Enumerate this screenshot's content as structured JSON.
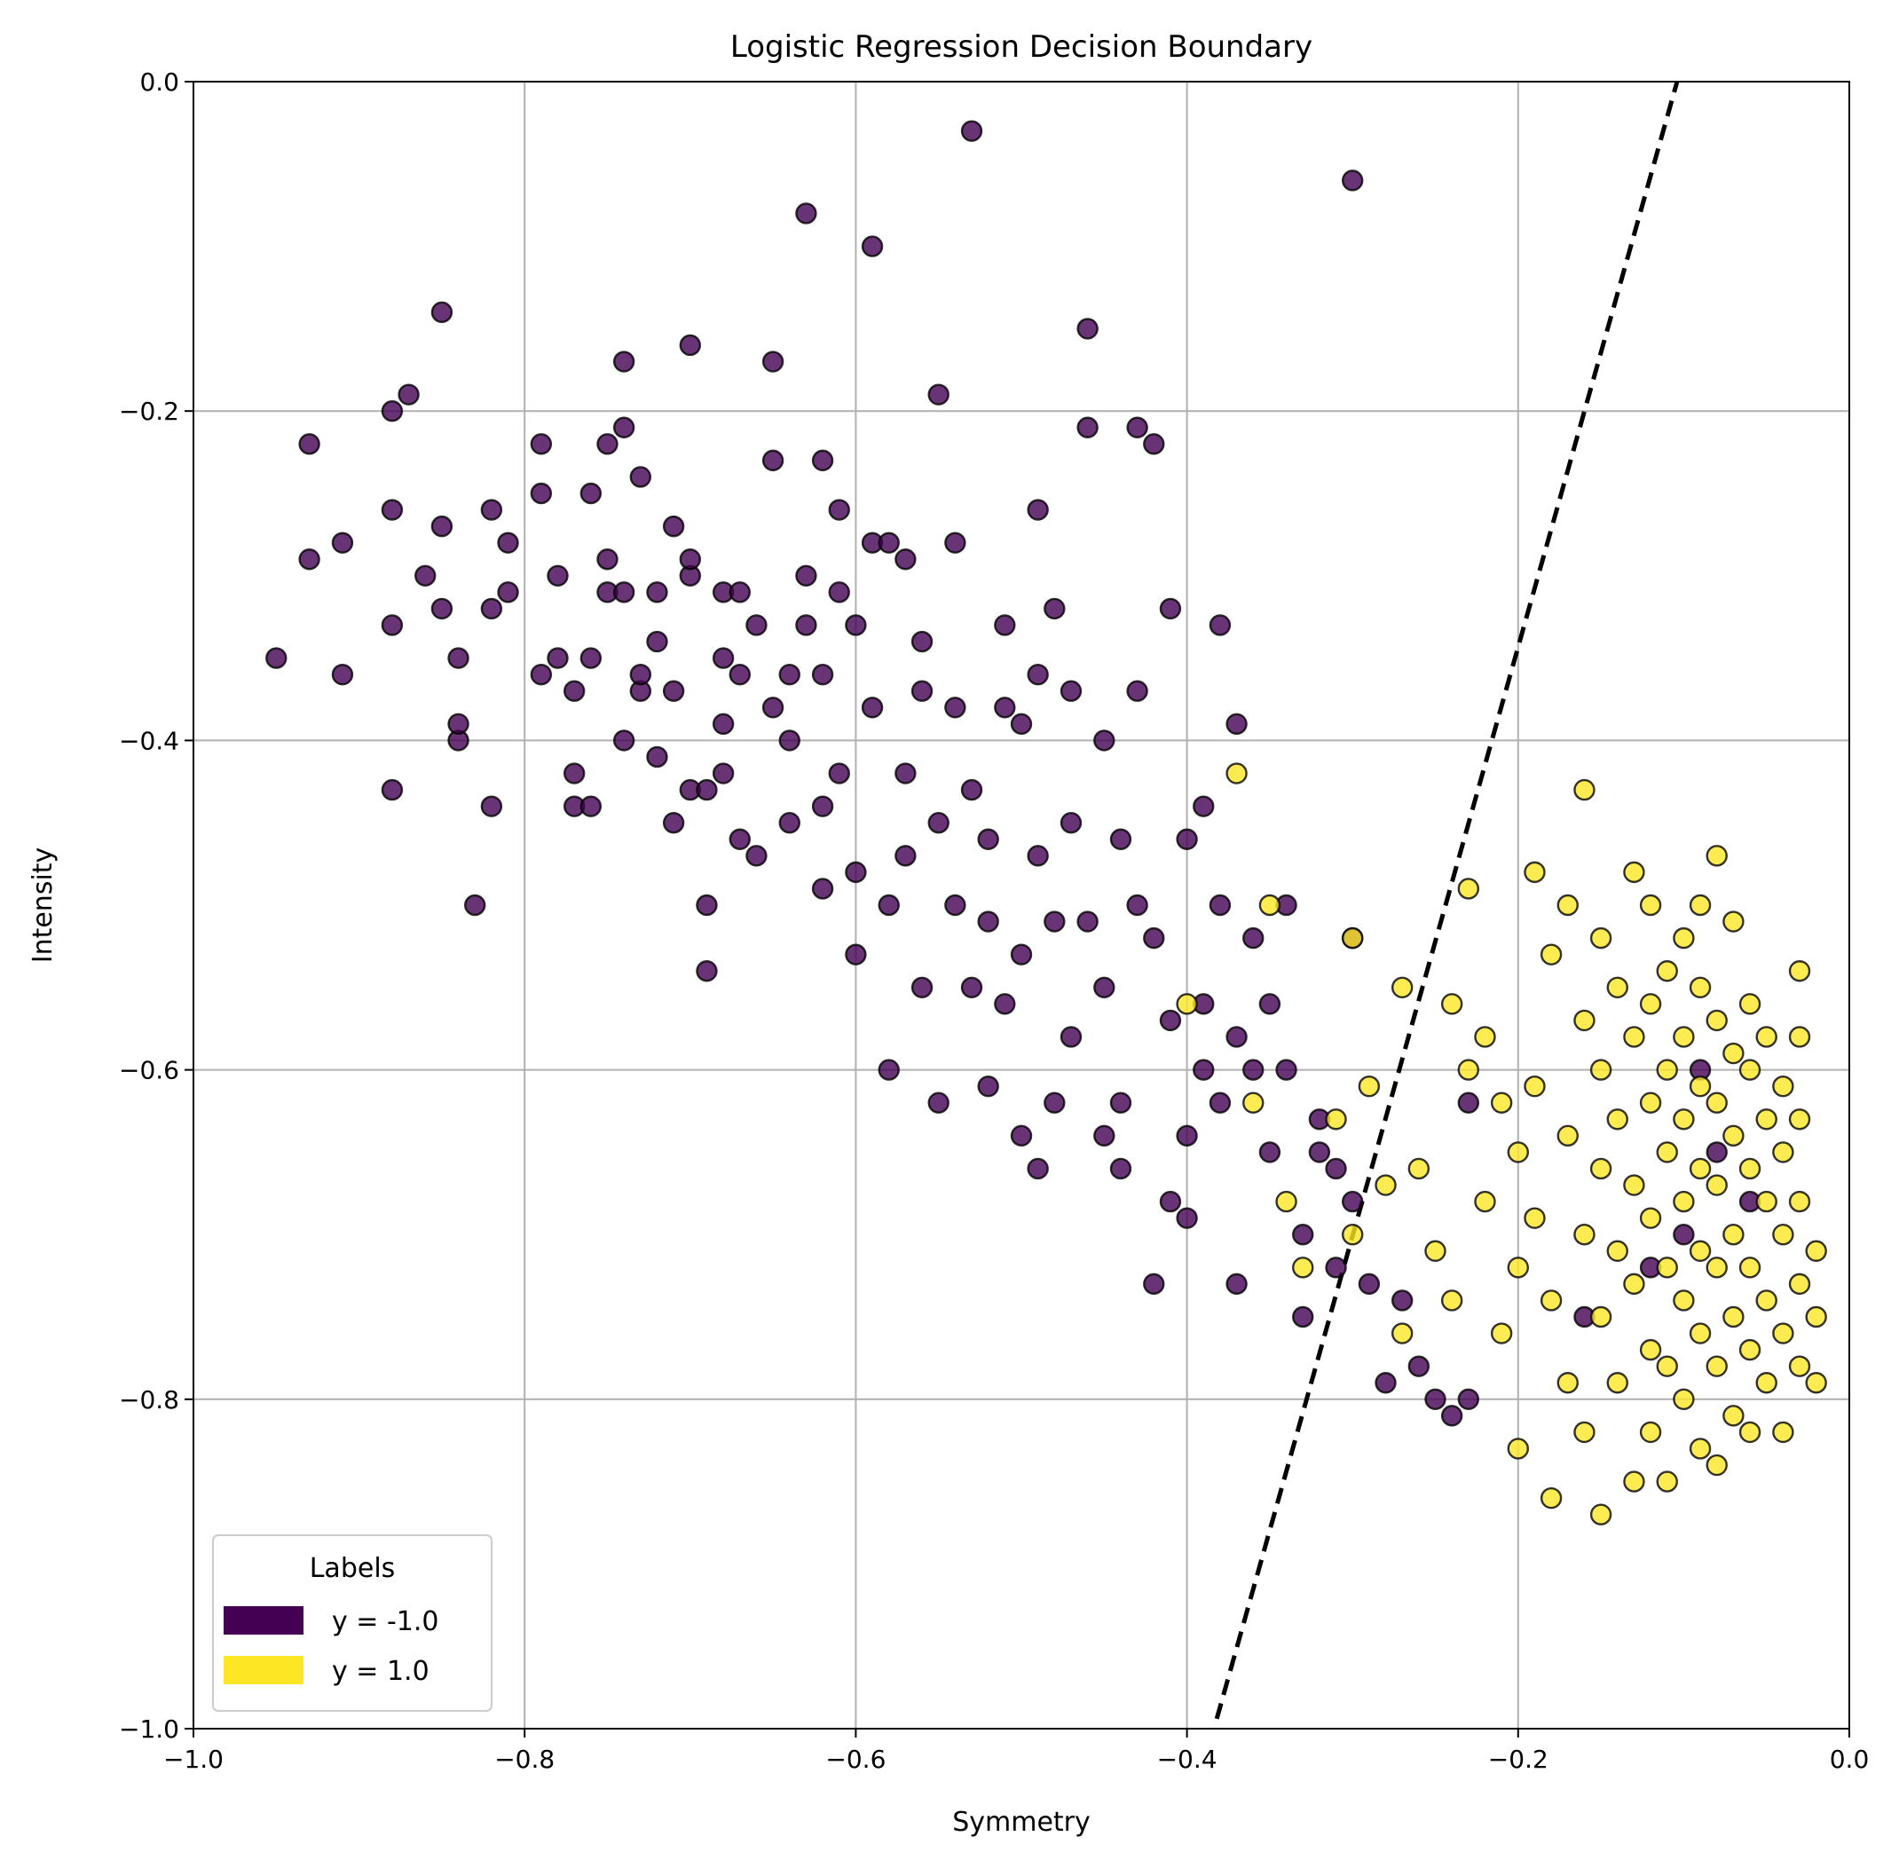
{
  "chart_data": {
    "type": "scatter",
    "title": "Logistic Regression Decision Boundary",
    "xlabel": "Symmetry",
    "ylabel": "Intensity",
    "xlim": [
      -1.0,
      0.0
    ],
    "ylim": [
      -1.0,
      0.0
    ],
    "grid": true,
    "xticks": [
      -1.0,
      -0.8,
      -0.6,
      -0.4,
      -0.2,
      0.0
    ],
    "yticks": [
      -1.0,
      -0.8,
      -0.6,
      -0.4,
      -0.2,
      0.0
    ],
    "xtick_labels": [
      "−1.0",
      "−0.8",
      "−0.6",
      "−0.4",
      "−0.2",
      "0.0"
    ],
    "ytick_labels": [
      "−1.0",
      "−0.8",
      "−0.6",
      "−0.4",
      "−0.2",
      "0.0"
    ],
    "legend": {
      "title": "Labels",
      "placement": "lower-left",
      "entries": [
        {
          "label": "y = -1.0",
          "color": "#440154"
        },
        {
          "label": "y = 1.0",
          "color": "#fde725"
        }
      ]
    },
    "decision_boundary": {
      "style": "dashed",
      "color": "#000000",
      "points": [
        [
          -0.382,
          -0.994
        ],
        [
          -0.104,
          0.0
        ]
      ]
    },
    "series": [
      {
        "label_value": -1.0,
        "color": "#440154",
        "points": [
          [
            -0.95,
            -0.35
          ],
          [
            -0.93,
            -0.22
          ],
          [
            -0.93,
            -0.29
          ],
          [
            -0.91,
            -0.36
          ],
          [
            -0.91,
            -0.28
          ],
          [
            -0.88,
            -0.2
          ],
          [
            -0.88,
            -0.33
          ],
          [
            -0.88,
            -0.43
          ],
          [
            -0.88,
            -0.26
          ],
          [
            -0.87,
            -0.19
          ],
          [
            -0.86,
            -0.3
          ],
          [
            -0.85,
            -0.27
          ],
          [
            -0.85,
            -0.14
          ],
          [
            -0.85,
            -0.32
          ],
          [
            -0.84,
            -0.35
          ],
          [
            -0.84,
            -0.4
          ],
          [
            -0.84,
            -0.39
          ],
          [
            -0.83,
            -0.5
          ],
          [
            -0.82,
            -0.44
          ],
          [
            -0.82,
            -0.26
          ],
          [
            -0.82,
            -0.32
          ],
          [
            -0.81,
            -0.31
          ],
          [
            -0.81,
            -0.28
          ],
          [
            -0.79,
            -0.22
          ],
          [
            -0.79,
            -0.25
          ],
          [
            -0.79,
            -0.36
          ],
          [
            -0.78,
            -0.3
          ],
          [
            -0.78,
            -0.35
          ],
          [
            -0.77,
            -0.37
          ],
          [
            -0.77,
            -0.42
          ],
          [
            -0.77,
            -0.44
          ],
          [
            -0.76,
            -0.25
          ],
          [
            -0.76,
            -0.35
          ],
          [
            -0.76,
            -0.44
          ],
          [
            -0.75,
            -0.22
          ],
          [
            -0.75,
            -0.31
          ],
          [
            -0.75,
            -0.29
          ],
          [
            -0.74,
            -0.17
          ],
          [
            -0.74,
            -0.21
          ],
          [
            -0.74,
            -0.31
          ],
          [
            -0.74,
            -0.4
          ],
          [
            -0.73,
            -0.24
          ],
          [
            -0.73,
            -0.37
          ],
          [
            -0.73,
            -0.36
          ],
          [
            -0.72,
            -0.41
          ],
          [
            -0.72,
            -0.34
          ],
          [
            -0.72,
            -0.31
          ],
          [
            -0.71,
            -0.37
          ],
          [
            -0.71,
            -0.27
          ],
          [
            -0.71,
            -0.45
          ],
          [
            -0.7,
            -0.16
          ],
          [
            -0.7,
            -0.3
          ],
          [
            -0.7,
            -0.29
          ],
          [
            -0.7,
            -0.43
          ],
          [
            -0.69,
            -0.54
          ],
          [
            -0.69,
            -0.5
          ],
          [
            -0.69,
            -0.43
          ],
          [
            -0.68,
            -0.31
          ],
          [
            -0.68,
            -0.35
          ],
          [
            -0.68,
            -0.39
          ],
          [
            -0.68,
            -0.42
          ],
          [
            -0.67,
            -0.36
          ],
          [
            -0.67,
            -0.46
          ],
          [
            -0.67,
            -0.31
          ],
          [
            -0.66,
            -0.33
          ],
          [
            -0.66,
            -0.47
          ],
          [
            -0.65,
            -0.17
          ],
          [
            -0.65,
            -0.23
          ],
          [
            -0.65,
            -0.38
          ],
          [
            -0.64,
            -0.4
          ],
          [
            -0.64,
            -0.36
          ],
          [
            -0.64,
            -0.45
          ],
          [
            -0.63,
            -0.08
          ],
          [
            -0.63,
            -0.3
          ],
          [
            -0.63,
            -0.33
          ],
          [
            -0.62,
            -0.23
          ],
          [
            -0.62,
            -0.36
          ],
          [
            -0.62,
            -0.44
          ],
          [
            -0.62,
            -0.49
          ],
          [
            -0.61,
            -0.26
          ],
          [
            -0.61,
            -0.31
          ],
          [
            -0.61,
            -0.42
          ],
          [
            -0.6,
            -0.33
          ],
          [
            -0.6,
            -0.48
          ],
          [
            -0.6,
            -0.53
          ],
          [
            -0.59,
            -0.1
          ],
          [
            -0.59,
            -0.28
          ],
          [
            -0.59,
            -0.38
          ],
          [
            -0.58,
            -0.28
          ],
          [
            -0.58,
            -0.5
          ],
          [
            -0.58,
            -0.6
          ],
          [
            -0.57,
            -0.29
          ],
          [
            -0.57,
            -0.42
          ],
          [
            -0.57,
            -0.47
          ],
          [
            -0.56,
            -0.55
          ],
          [
            -0.56,
            -0.37
          ],
          [
            -0.56,
            -0.34
          ],
          [
            -0.55,
            -0.45
          ],
          [
            -0.55,
            -0.19
          ],
          [
            -0.55,
            -0.62
          ],
          [
            -0.54,
            -0.28
          ],
          [
            -0.54,
            -0.5
          ],
          [
            -0.54,
            -0.38
          ],
          [
            -0.53,
            -0.03
          ],
          [
            -0.53,
            -0.43
          ],
          [
            -0.53,
            -0.55
          ],
          [
            -0.52,
            -0.46
          ],
          [
            -0.52,
            -0.51
          ],
          [
            -0.52,
            -0.61
          ],
          [
            -0.51,
            -0.33
          ],
          [
            -0.51,
            -0.38
          ],
          [
            -0.51,
            -0.56
          ],
          [
            -0.5,
            -0.39
          ],
          [
            -0.5,
            -0.53
          ],
          [
            -0.5,
            -0.64
          ],
          [
            -0.49,
            -0.26
          ],
          [
            -0.49,
            -0.36
          ],
          [
            -0.49,
            -0.47
          ],
          [
            -0.49,
            -0.66
          ],
          [
            -0.48,
            -0.32
          ],
          [
            -0.48,
            -0.51
          ],
          [
            -0.48,
            -0.62
          ],
          [
            -0.47,
            -0.37
          ],
          [
            -0.47,
            -0.45
          ],
          [
            -0.47,
            -0.58
          ],
          [
            -0.46,
            -0.15
          ],
          [
            -0.46,
            -0.21
          ],
          [
            -0.46,
            -0.51
          ],
          [
            -0.45,
            -0.4
          ],
          [
            -0.45,
            -0.55
          ],
          [
            -0.45,
            -0.64
          ],
          [
            -0.44,
            -0.46
          ],
          [
            -0.44,
            -0.62
          ],
          [
            -0.44,
            -0.66
          ],
          [
            -0.43,
            -0.21
          ],
          [
            -0.43,
            -0.37
          ],
          [
            -0.43,
            -0.5
          ],
          [
            -0.42,
            -0.22
          ],
          [
            -0.42,
            -0.52
          ],
          [
            -0.42,
            -0.73
          ],
          [
            -0.41,
            -0.32
          ],
          [
            -0.41,
            -0.57
          ],
          [
            -0.41,
            -0.68
          ],
          [
            -0.4,
            -0.46
          ],
          [
            -0.4,
            -0.64
          ],
          [
            -0.4,
            -0.69
          ],
          [
            -0.39,
            -0.44
          ],
          [
            -0.39,
            -0.56
          ],
          [
            -0.39,
            -0.6
          ],
          [
            -0.38,
            -0.33
          ],
          [
            -0.38,
            -0.5
          ],
          [
            -0.38,
            -0.62
          ],
          [
            -0.37,
            -0.39
          ],
          [
            -0.37,
            -0.58
          ],
          [
            -0.37,
            -0.73
          ],
          [
            -0.36,
            -0.52
          ],
          [
            -0.36,
            -0.6
          ],
          [
            -0.35,
            -0.56
          ],
          [
            -0.35,
            -0.65
          ],
          [
            -0.34,
            -0.5
          ],
          [
            -0.34,
            -0.6
          ],
          [
            -0.33,
            -0.7
          ],
          [
            -0.33,
            -0.75
          ],
          [
            -0.32,
            -0.63
          ],
          [
            -0.32,
            -0.65
          ],
          [
            -0.31,
            -0.66
          ],
          [
            -0.31,
            -0.72
          ],
          [
            -0.3,
            -0.06
          ],
          [
            -0.3,
            -0.52
          ],
          [
            -0.3,
            -0.68
          ],
          [
            -0.29,
            -0.73
          ],
          [
            -0.28,
            -0.79
          ],
          [
            -0.27,
            -0.74
          ],
          [
            -0.26,
            -0.78
          ],
          [
            -0.25,
            -0.8
          ],
          [
            -0.24,
            -0.81
          ],
          [
            -0.23,
            -0.62
          ],
          [
            -0.23,
            -0.8
          ],
          [
            -0.16,
            -0.75
          ],
          [
            -0.12,
            -0.72
          ],
          [
            -0.1,
            -0.7
          ],
          [
            -0.09,
            -0.6
          ],
          [
            -0.08,
            -0.65
          ],
          [
            -0.06,
            -0.68
          ]
        ]
      },
      {
        "label_value": 1.0,
        "color": "#fde725",
        "points": [
          [
            -0.37,
            -0.42
          ],
          [
            -0.4,
            -0.56
          ],
          [
            -0.36,
            -0.62
          ],
          [
            -0.35,
            -0.5
          ],
          [
            -0.34,
            -0.68
          ],
          [
            -0.33,
            -0.72
          ],
          [
            -0.31,
            -0.63
          ],
          [
            -0.3,
            -0.52
          ],
          [
            -0.3,
            -0.7
          ],
          [
            -0.29,
            -0.61
          ],
          [
            -0.28,
            -0.67
          ],
          [
            -0.27,
            -0.55
          ],
          [
            -0.27,
            -0.76
          ],
          [
            -0.26,
            -0.66
          ],
          [
            -0.25,
            -0.71
          ],
          [
            -0.24,
            -0.56
          ],
          [
            -0.24,
            -0.74
          ],
          [
            -0.23,
            -0.49
          ],
          [
            -0.23,
            -0.6
          ],
          [
            -0.22,
            -0.58
          ],
          [
            -0.22,
            -0.68
          ],
          [
            -0.21,
            -0.62
          ],
          [
            -0.21,
            -0.76
          ],
          [
            -0.2,
            -0.65
          ],
          [
            -0.2,
            -0.72
          ],
          [
            -0.2,
            -0.83
          ],
          [
            -0.19,
            -0.48
          ],
          [
            -0.19,
            -0.61
          ],
          [
            -0.19,
            -0.69
          ],
          [
            -0.18,
            -0.53
          ],
          [
            -0.18,
            -0.74
          ],
          [
            -0.18,
            -0.86
          ],
          [
            -0.17,
            -0.5
          ],
          [
            -0.17,
            -0.64
          ],
          [
            -0.17,
            -0.79
          ],
          [
            -0.16,
            -0.43
          ],
          [
            -0.16,
            -0.57
          ],
          [
            -0.16,
            -0.7
          ],
          [
            -0.16,
            -0.82
          ],
          [
            -0.15,
            -0.52
          ],
          [
            -0.15,
            -0.6
          ],
          [
            -0.15,
            -0.66
          ],
          [
            -0.15,
            -0.75
          ],
          [
            -0.15,
            -0.87
          ],
          [
            -0.14,
            -0.55
          ],
          [
            -0.14,
            -0.63
          ],
          [
            -0.14,
            -0.71
          ],
          [
            -0.14,
            -0.79
          ],
          [
            -0.13,
            -0.48
          ],
          [
            -0.13,
            -0.58
          ],
          [
            -0.13,
            -0.67
          ],
          [
            -0.13,
            -0.73
          ],
          [
            -0.13,
            -0.85
          ],
          [
            -0.12,
            -0.5
          ],
          [
            -0.12,
            -0.56
          ],
          [
            -0.12,
            -0.62
          ],
          [
            -0.12,
            -0.69
          ],
          [
            -0.12,
            -0.77
          ],
          [
            -0.12,
            -0.82
          ],
          [
            -0.11,
            -0.54
          ],
          [
            -0.11,
            -0.6
          ],
          [
            -0.11,
            -0.65
          ],
          [
            -0.11,
            -0.72
          ],
          [
            -0.11,
            -0.78
          ],
          [
            -0.11,
            -0.85
          ],
          [
            -0.1,
            -0.52
          ],
          [
            -0.1,
            -0.58
          ],
          [
            -0.1,
            -0.63
          ],
          [
            -0.1,
            -0.68
          ],
          [
            -0.1,
            -0.74
          ],
          [
            -0.1,
            -0.8
          ],
          [
            -0.09,
            -0.5
          ],
          [
            -0.09,
            -0.55
          ],
          [
            -0.09,
            -0.61
          ],
          [
            -0.09,
            -0.66
          ],
          [
            -0.09,
            -0.71
          ],
          [
            -0.09,
            -0.76
          ],
          [
            -0.09,
            -0.83
          ],
          [
            -0.08,
            -0.47
          ],
          [
            -0.08,
            -0.57
          ],
          [
            -0.08,
            -0.62
          ],
          [
            -0.08,
            -0.67
          ],
          [
            -0.08,
            -0.72
          ],
          [
            -0.08,
            -0.78
          ],
          [
            -0.08,
            -0.84
          ],
          [
            -0.07,
            -0.51
          ],
          [
            -0.07,
            -0.59
          ],
          [
            -0.07,
            -0.64
          ],
          [
            -0.07,
            -0.7
          ],
          [
            -0.07,
            -0.75
          ],
          [
            -0.07,
            -0.81
          ],
          [
            -0.06,
            -0.56
          ],
          [
            -0.06,
            -0.6
          ],
          [
            -0.06,
            -0.66
          ],
          [
            -0.06,
            -0.72
          ],
          [
            -0.06,
            -0.77
          ],
          [
            -0.06,
            -0.82
          ],
          [
            -0.05,
            -0.58
          ],
          [
            -0.05,
            -0.63
          ],
          [
            -0.05,
            -0.68
          ],
          [
            -0.05,
            -0.74
          ],
          [
            -0.05,
            -0.79
          ],
          [
            -0.04,
            -0.61
          ],
          [
            -0.04,
            -0.65
          ],
          [
            -0.04,
            -0.7
          ],
          [
            -0.04,
            -0.76
          ],
          [
            -0.04,
            -0.82
          ],
          [
            -0.03,
            -0.54
          ],
          [
            -0.03,
            -0.58
          ],
          [
            -0.03,
            -0.63
          ],
          [
            -0.03,
            -0.68
          ],
          [
            -0.03,
            -0.73
          ],
          [
            -0.03,
            -0.78
          ],
          [
            -0.02,
            -0.71
          ],
          [
            -0.02,
            -0.75
          ],
          [
            -0.02,
            -0.79
          ]
        ]
      }
    ]
  }
}
